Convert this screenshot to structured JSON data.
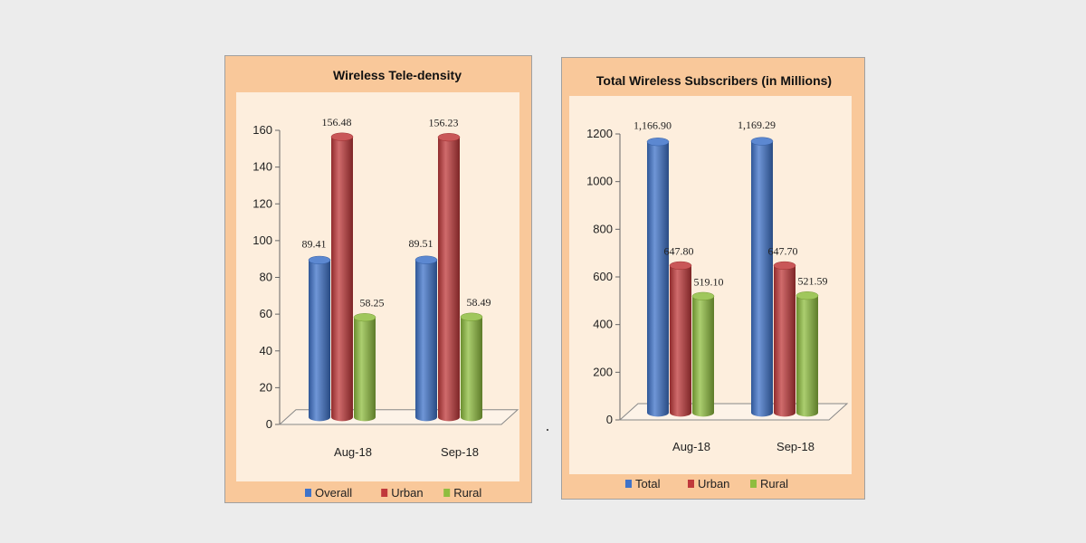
{
  "chart_data": [
    {
      "type": "bar",
      "title": "Wireless Tele-density",
      "categories": [
        "Aug-18",
        "Sep-18"
      ],
      "series": [
        {
          "name": "Overall",
          "values": [
            89.41,
            89.51
          ],
          "labels": [
            "89.41",
            "89.51"
          ],
          "color": "#3f73c9"
        },
        {
          "name": "Urban",
          "values": [
            156.48,
            156.23
          ],
          "labels": [
            "156.48",
            "156.23"
          ],
          "color": "#c0393b"
        },
        {
          "name": "Rural",
          "values": [
            58.25,
            58.49
          ],
          "labels": [
            "58.25",
            "58.49"
          ],
          "color": "#8fbd3f"
        }
      ],
      "yticks": [
        "0",
        "20",
        "40",
        "60",
        "80",
        "100",
        "120",
        "140",
        "160"
      ],
      "ylim": [
        0,
        160
      ],
      "legend": "bottom",
      "style": "3d-cylinder"
    },
    {
      "type": "bar",
      "title": "Total Wireless Subscribers (in Millions)",
      "categories": [
        "Aug-18",
        "Sep-18"
      ],
      "series": [
        {
          "name": "Total",
          "values": [
            1166.9,
            1169.29
          ],
          "labels": [
            "1,166.90",
            "1,169.29"
          ],
          "color": "#3f73c9"
        },
        {
          "name": "Urban",
          "values": [
            647.8,
            647.7
          ],
          "labels": [
            "647.80",
            "647.70"
          ],
          "color": "#c0393b"
        },
        {
          "name": "Rural",
          "values": [
            519.1,
            521.59
          ],
          "labels": [
            "519.10",
            "521.59"
          ],
          "color": "#8fbd3f"
        }
      ],
      "yticks": [
        "0",
        "200",
        "400",
        "600",
        "800",
        "1000",
        "1200"
      ],
      "ylim": [
        0,
        1200
      ],
      "legend": "bottom",
      "style": "3d-cylinder"
    }
  ]
}
